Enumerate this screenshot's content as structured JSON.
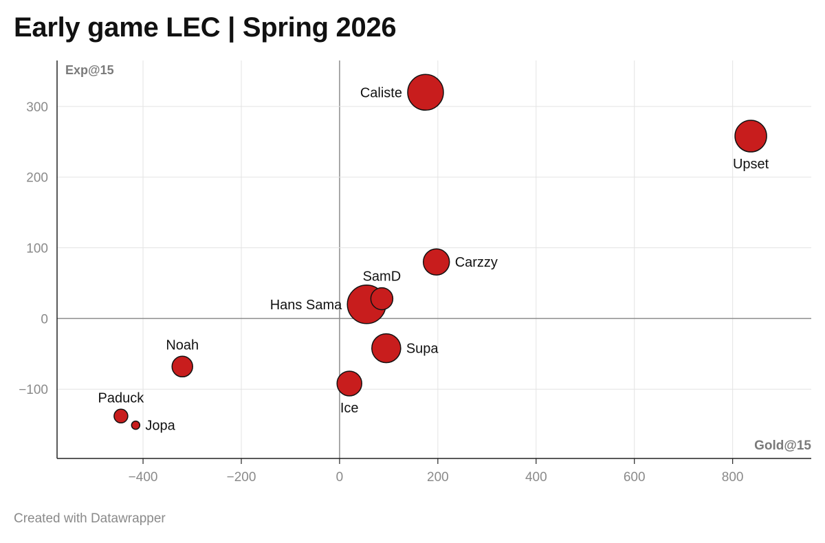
{
  "title": "Early game LEC | Spring 2026",
  "footer": "Created with Datawrapper",
  "colors": {
    "bubble": "#c81d1d",
    "bubble_stroke": "#111111",
    "grid": "#e3e3e3",
    "zero_line": "#8c8c8c",
    "axis": "#222222",
    "tick_text": "#8a8a8a",
    "label_text": "#111111",
    "axis_title": "#7a7a7a"
  },
  "chart_data": {
    "type": "scatter",
    "x_axis_title": "Gold@15",
    "y_axis_title": "Exp@15",
    "xlim": [
      -575,
      960
    ],
    "ylim": [
      -198,
      365
    ],
    "x_ticks": [
      -400,
      -200,
      0,
      200,
      400,
      600,
      800
    ],
    "x_tick_labels": [
      "−400",
      "−200",
      "0",
      "200",
      "400",
      "600",
      "800"
    ],
    "y_ticks": [
      -100,
      0,
      100,
      200,
      300
    ],
    "y_tick_labels": [
      "−100",
      "0",
      "100",
      "200",
      "300"
    ],
    "grid": true,
    "points": [
      {
        "name": "Caliste",
        "x": 175,
        "y": 320,
        "size": 26,
        "label_pos": "left"
      },
      {
        "name": "Upset",
        "x": 837,
        "y": 258,
        "size": 23,
        "label_pos": "below"
      },
      {
        "name": "Carzzy",
        "x": 197,
        "y": 80,
        "size": 19,
        "label_pos": "right"
      },
      {
        "name": "SamD",
        "x": 86,
        "y": 28,
        "size": 16,
        "label_pos": "above"
      },
      {
        "name": "Hans Sama",
        "x": 55,
        "y": 20,
        "size": 28,
        "label_pos": "left"
      },
      {
        "name": "Supa",
        "x": 95,
        "y": -42,
        "size": 21,
        "label_pos": "right"
      },
      {
        "name": "Noah",
        "x": -320,
        "y": -68,
        "size": 15,
        "label_pos": "above"
      },
      {
        "name": "Ice",
        "x": 20,
        "y": -92,
        "size": 18,
        "label_pos": "below"
      },
      {
        "name": "Paduck",
        "x": -445,
        "y": -138,
        "size": 10,
        "label_pos": "above"
      },
      {
        "name": "Jopa",
        "x": -415,
        "y": -151,
        "size": 6,
        "label_pos": "right"
      }
    ]
  }
}
